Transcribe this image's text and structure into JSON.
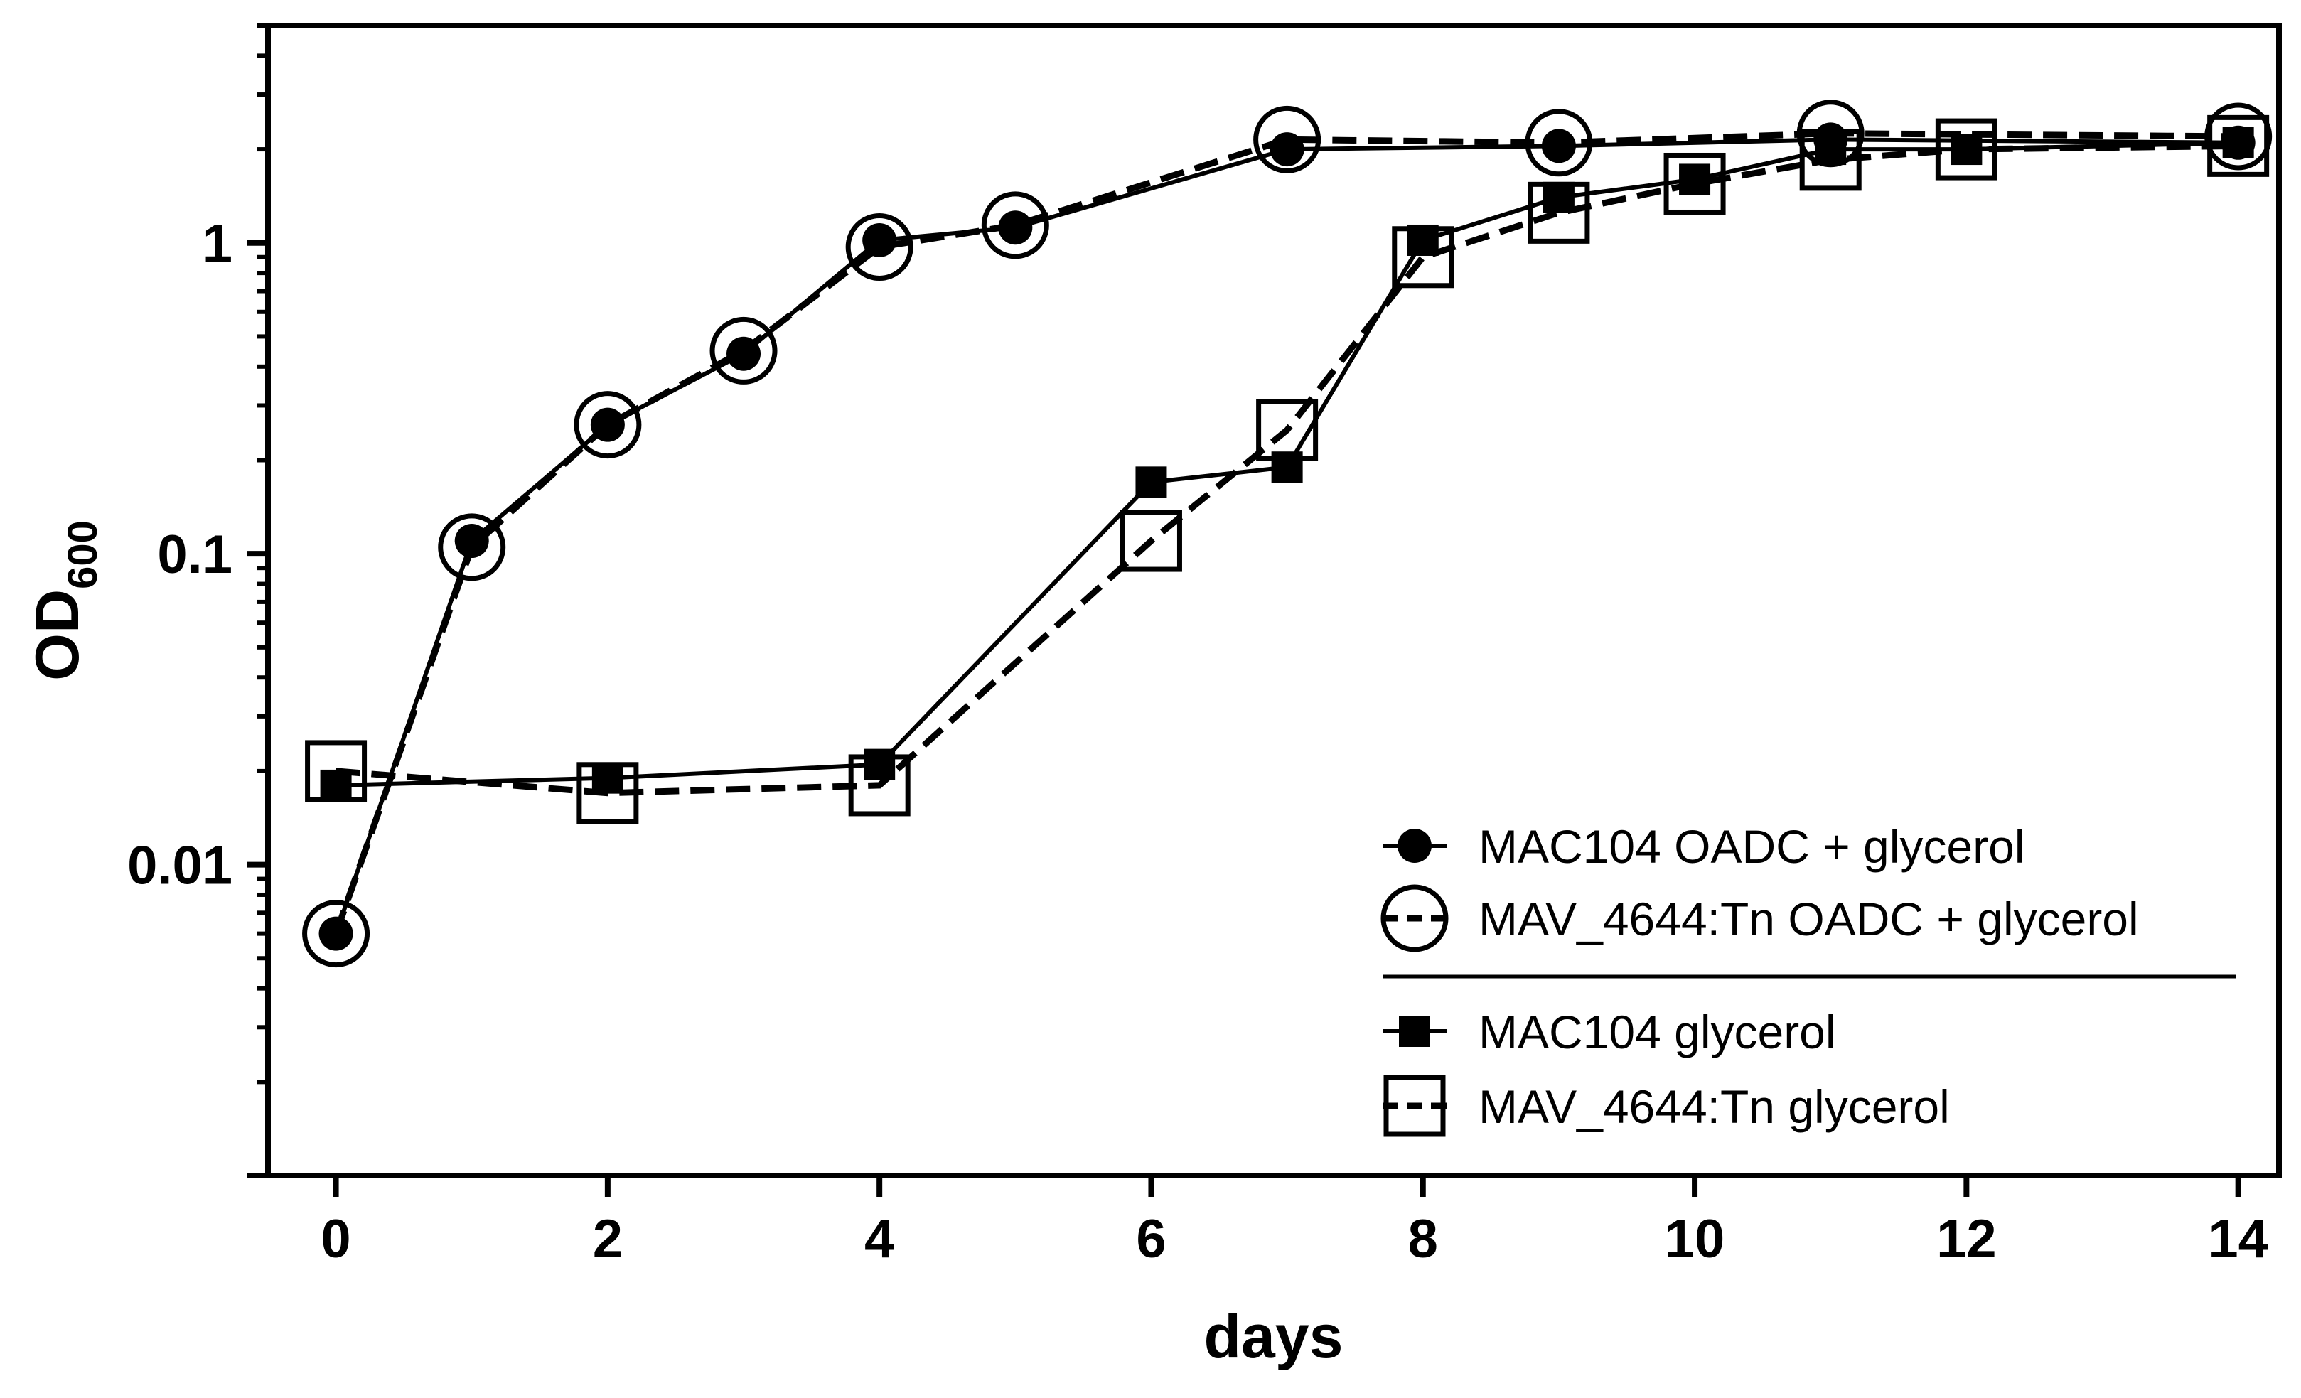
{
  "chart_data": {
    "type": "line",
    "title": "",
    "xlabel": "days",
    "ylabel": {
      "main": "OD",
      "subscript": "600"
    },
    "xlim": [
      -0.5,
      14.3
    ],
    "ylim": [
      0.001,
      5
    ],
    "yscale": "log",
    "x_ticks": [
      0,
      2,
      4,
      6,
      8,
      10,
      12,
      14
    ],
    "x_tick_labels": [
      "0",
      "2",
      "4",
      "6",
      "8",
      "10",
      "12",
      "14"
    ],
    "y_ticks": [
      0.01,
      0.1,
      1
    ],
    "y_tick_labels": [
      "0.01",
      "0.1",
      "1"
    ],
    "grid": false,
    "legend_position": "bottom-right",
    "series": [
      {
        "name": "MAC104 OADC + glycerol",
        "marker": "filled-circle",
        "line": "solid",
        "x": [
          0,
          1,
          2,
          3,
          4,
          5,
          7,
          9,
          11,
          14
        ],
        "values": [
          0.006,
          0.11,
          0.26,
          0.44,
          1.02,
          1.12,
          2.0,
          2.05,
          2.15,
          2.1
        ]
      },
      {
        "name": "MAV_4644:Tn OADC + glycerol",
        "marker": "open-circle",
        "line": "dashed",
        "x": [
          0,
          1,
          2,
          3,
          4,
          5,
          7,
          9,
          11,
          14
        ],
        "values": [
          0.006,
          0.105,
          0.26,
          0.45,
          0.97,
          1.14,
          2.15,
          2.1,
          2.25,
          2.2
        ]
      },
      {
        "name": "MAC104 glycerol",
        "marker": "filled-square",
        "line": "solid",
        "x": [
          0,
          2,
          4,
          6,
          7,
          8,
          9,
          10,
          11,
          12,
          14
        ],
        "values": [
          0.018,
          0.019,
          0.021,
          0.17,
          0.19,
          1.02,
          1.4,
          1.6,
          2.0,
          2.0,
          2.1
        ]
      },
      {
        "name": "MAV_4644:Tn glycerol",
        "marker": "open-square",
        "line": "dashed",
        "x": [
          0,
          2,
          4,
          6,
          7,
          8,
          9,
          10,
          11,
          12,
          14
        ],
        "values": [
          0.02,
          0.017,
          0.018,
          0.11,
          0.25,
          0.9,
          1.25,
          1.55,
          1.85,
          2.0,
          2.05
        ]
      }
    ]
  }
}
